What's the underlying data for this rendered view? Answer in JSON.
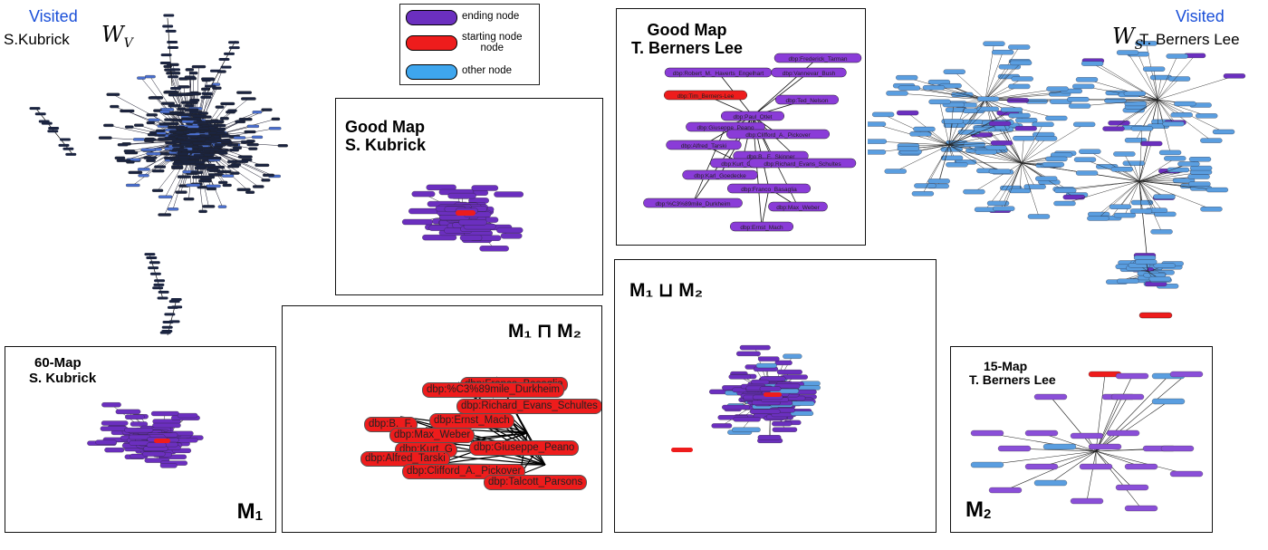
{
  "legend": {
    "items": [
      {
        "label": "ending node",
        "color": "#6b2fbf"
      },
      {
        "label": "starting node\nnode",
        "color": "#ee1c1c"
      },
      {
        "label": "other node",
        "color": "#3ea6ee"
      }
    ]
  },
  "visited_kubrick": {
    "visited": "Visited",
    "who": "S.Kubrick",
    "symbol": "W",
    "sub": "V"
  },
  "visited_berners": {
    "visited": "Visited",
    "who": "T. Berners Lee",
    "symbol": "W",
    "sub": "S"
  },
  "good_map_kubrick": {
    "line1": "Good Map",
    "line2": "S. Kubrick"
  },
  "good_map_berners": {
    "line1": "Good Map",
    "line2": "T. Berners Lee",
    "nodes": [
      {
        "label": "dbp:Frederick_Tarman",
        "color": "#8a3cd8"
      },
      {
        "label": "dbp:Robert_M._Haverts_Engelhart",
        "color": "#8a3cd8"
      },
      {
        "label": "dbp:Vannevar_Bush",
        "color": "#8a3cd8"
      },
      {
        "label": "dbp:Tim_Berners-Lee",
        "color": "#ee1c1c"
      },
      {
        "label": "dbp:Ted_Nelson",
        "color": "#8a3cd8"
      },
      {
        "label": "dbp:Paul_Otlet",
        "color": "#8a3cd8"
      },
      {
        "label": "dbp:Giuseppe_Peano",
        "color": "#8a3cd8"
      },
      {
        "label": "dbp:Clifford_A._Pickover",
        "color": "#8a3cd8"
      },
      {
        "label": "dbp:Alfred_Tarski",
        "color": "#8a3cd8"
      },
      {
        "label": "dbp:B._F._Skinner",
        "color": "#8a3cd8"
      },
      {
        "label": "dbp:Kurt_Godel",
        "color": "#8a3cd8"
      },
      {
        "label": "dbp:Richard_Evans_Schultes",
        "color": "#8a3cd8"
      },
      {
        "label": "dbp:Karl_Goedecke",
        "color": "#8a3cd8"
      },
      {
        "label": "dbp:Franco_Basaglia",
        "color": "#8a3cd8"
      },
      {
        "label": "dbp:%C3%89mile_Durkheim",
        "color": "#8a3cd8"
      },
      {
        "label": "dbp:Max_Weber",
        "color": "#8a3cd8"
      },
      {
        "label": "dbp:Ernst_Mach",
        "color": "#8a3cd8"
      }
    ]
  },
  "intersection": {
    "title": "M₁ ⊓  M₂",
    "nodes": [
      {
        "label": "dbp:Franco_Basaglia"
      },
      {
        "label": "dbp:%C3%89mile_Durkheim"
      },
      {
        "label": "dbp:Richard_Evans_Schultes"
      },
      {
        "label": "dbp:B._F."
      },
      {
        "label": "dbp:Ernst_Mach"
      },
      {
        "label": "dbp:Max_Weber"
      },
      {
        "label": "dbp:Kurt_G"
      },
      {
        "label": "dbp:Giuseppe_Peano"
      },
      {
        "label": "dbp:Alfred_Tarski"
      },
      {
        "label": "dbp:Clifford_A._Pickover"
      },
      {
        "label": "dbp:Talcott_Parsons"
      }
    ]
  },
  "union": {
    "title": "M₁ ⊔ M₂"
  },
  "map60": {
    "line1": "60-Map",
    "line2": "S. Kubrick",
    "corner": "M",
    "corner_sub": "1"
  },
  "map15": {
    "line1": "15-Map",
    "line2": "T. Berners Lee",
    "corner": "M",
    "corner_sub": "2"
  },
  "colors": {
    "purple": "#6b2fbf",
    "red": "#ee1c1c",
    "blue": "#5a9ee0",
    "dark": "#101528"
  }
}
